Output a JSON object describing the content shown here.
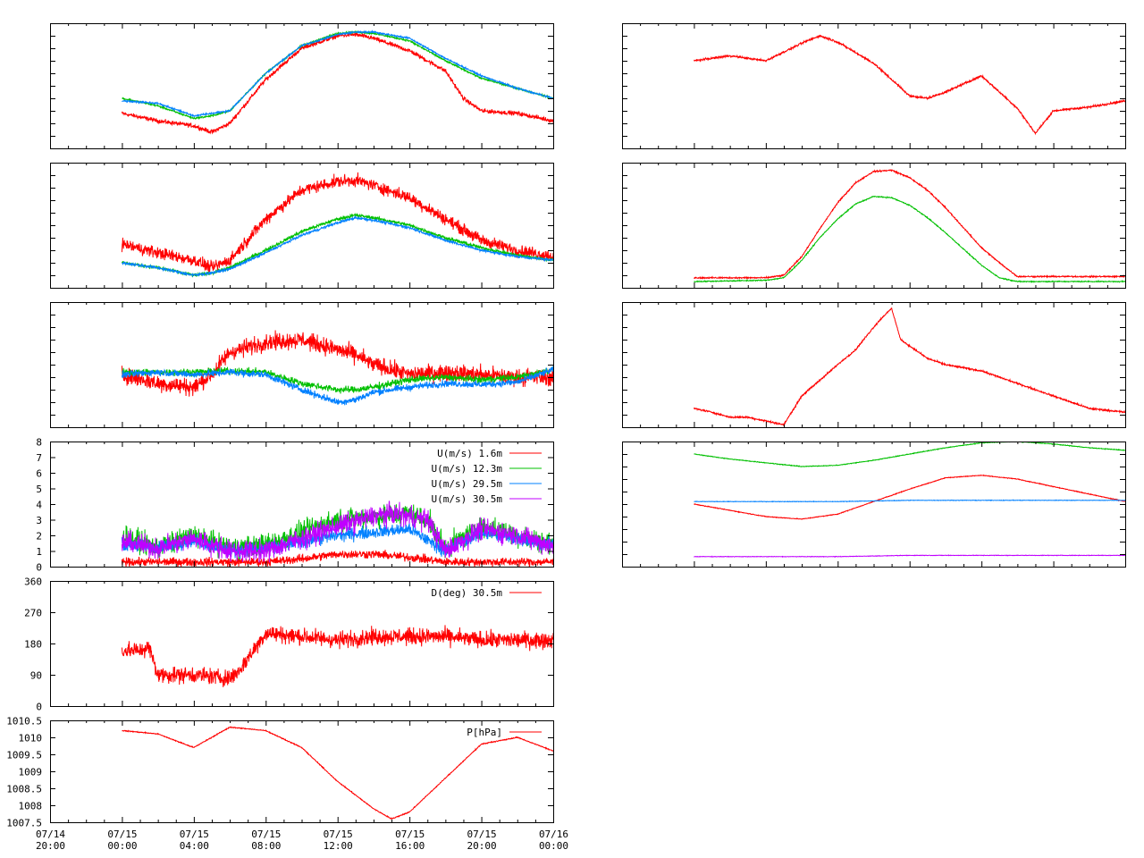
{
  "colors": {
    "red": "#ff0000",
    "green": "#00c000",
    "blue": "#0080ff",
    "purple": "#c000ff"
  },
  "x_tick_labels": [
    {
      "date": "07/14",
      "time": "20:00"
    },
    {
      "date": "07/15",
      "time": "00:00"
    },
    {
      "date": "07/15",
      "time": "04:00"
    },
    {
      "date": "07/15",
      "time": "08:00"
    },
    {
      "date": "07/15",
      "time": "12:00"
    },
    {
      "date": "07/15",
      "time": "16:00"
    },
    {
      "date": "07/15",
      "time": "20:00"
    },
    {
      "date": "07/16",
      "time": "00:00"
    }
  ],
  "chart_data": [
    {
      "type": "line",
      "panel": "left-1",
      "xlim": [
        "07/14 20:00",
        "07/16 00:00"
      ],
      "show_y_tick_labels": false,
      "series": [
        {
          "color": "red",
          "noise": 0.025,
          "x": [
            4,
            6,
            8,
            9,
            10,
            12,
            14,
            16,
            17,
            18,
            20,
            22,
            23,
            24,
            26,
            28
          ],
          "values": [
            0.28,
            0.22,
            0.18,
            0.13,
            0.2,
            0.55,
            0.8,
            0.9,
            0.91,
            0.88,
            0.78,
            0.62,
            0.4,
            0.3,
            0.28,
            0.22
          ]
        },
        {
          "color": "green",
          "noise": 0.01,
          "x": [
            4,
            6,
            8,
            9,
            10,
            12,
            14,
            16,
            17,
            18,
            20,
            22,
            24,
            26,
            28
          ],
          "values": [
            0.4,
            0.34,
            0.24,
            0.26,
            0.3,
            0.6,
            0.82,
            0.92,
            0.93,
            0.92,
            0.86,
            0.7,
            0.56,
            0.48,
            0.4
          ]
        },
        {
          "color": "blue",
          "noise": 0.01,
          "x": [
            4,
            6,
            8,
            9,
            10,
            12,
            14,
            16,
            17,
            18,
            20,
            22,
            24,
            26,
            28
          ],
          "values": [
            0.38,
            0.36,
            0.26,
            0.28,
            0.3,
            0.6,
            0.82,
            0.91,
            0.93,
            0.93,
            0.88,
            0.72,
            0.58,
            0.48,
            0.4
          ]
        }
      ]
    },
    {
      "type": "line",
      "panel": "left-2",
      "xlim": [
        "07/14 20:00",
        "07/16 00:00"
      ],
      "show_y_tick_labels": false,
      "series": [
        {
          "color": "red",
          "noise": 0.07,
          "x": [
            4,
            6,
            8,
            9,
            10,
            12,
            14,
            16,
            17,
            18,
            20,
            22,
            24,
            26,
            28
          ],
          "values": [
            0.35,
            0.28,
            0.22,
            0.16,
            0.22,
            0.55,
            0.78,
            0.85,
            0.86,
            0.82,
            0.72,
            0.55,
            0.38,
            0.3,
            0.25
          ]
        },
        {
          "color": "green",
          "noise": 0.02,
          "x": [
            4,
            6,
            8,
            9,
            10,
            12,
            14,
            16,
            17,
            18,
            20,
            22,
            24,
            26,
            28
          ],
          "values": [
            0.2,
            0.16,
            0.1,
            0.12,
            0.16,
            0.3,
            0.45,
            0.55,
            0.58,
            0.56,
            0.5,
            0.4,
            0.32,
            0.26,
            0.22
          ]
        },
        {
          "color": "blue",
          "noise": 0.015,
          "x": [
            4,
            6,
            8,
            9,
            10,
            12,
            14,
            16,
            17,
            18,
            20,
            22,
            24,
            26,
            28
          ],
          "values": [
            0.2,
            0.16,
            0.1,
            0.12,
            0.15,
            0.28,
            0.42,
            0.52,
            0.56,
            0.54,
            0.48,
            0.38,
            0.3,
            0.25,
            0.22
          ]
        }
      ]
    },
    {
      "type": "line",
      "panel": "left-3",
      "xlim": [
        "07/14 20:00",
        "07/16 00:00"
      ],
      "show_y_tick_labels": false,
      "series": [
        {
          "color": "red",
          "noise": 0.1,
          "x": [
            4,
            6,
            8,
            9,
            10,
            12,
            14,
            16,
            17,
            18,
            20,
            22,
            24,
            26,
            28
          ],
          "values": [
            0.42,
            0.35,
            0.32,
            0.42,
            0.6,
            0.68,
            0.7,
            0.62,
            0.58,
            0.5,
            0.42,
            0.44,
            0.42,
            0.4,
            0.4
          ]
        },
        {
          "color": "green",
          "noise": 0.04,
          "x": [
            4,
            6,
            8,
            10,
            12,
            14,
            16,
            17,
            18,
            20,
            22,
            24,
            26,
            28
          ],
          "values": [
            0.44,
            0.44,
            0.44,
            0.45,
            0.44,
            0.35,
            0.3,
            0.3,
            0.32,
            0.38,
            0.4,
            0.38,
            0.4,
            0.46
          ]
        },
        {
          "color": "blue",
          "noise": 0.04,
          "x": [
            4,
            6,
            8,
            10,
            12,
            14,
            16,
            17,
            18,
            20,
            22,
            24,
            26,
            28
          ],
          "values": [
            0.42,
            0.44,
            0.42,
            0.44,
            0.42,
            0.3,
            0.2,
            0.22,
            0.28,
            0.32,
            0.35,
            0.34,
            0.36,
            0.46
          ]
        }
      ]
    },
    {
      "type": "line",
      "panel": "left-4",
      "xlim": [
        "07/14 20:00",
        "07/16 00:00"
      ],
      "ylim": [
        0,
        8
      ],
      "yticks": [
        "0",
        "1",
        "2",
        "3",
        "4",
        "5",
        "6",
        "7",
        "8"
      ],
      "legend_position": "top-right",
      "series": [
        {
          "name": "U(m/s)  1.6m",
          "color": "red",
          "noise": 0.4,
          "x": [
            4,
            8,
            12,
            14,
            16,
            18,
            20,
            22,
            24,
            28
          ],
          "values": [
            0.3,
            0.3,
            0.3,
            0.5,
            0.8,
            0.8,
            0.6,
            0.3,
            0.3,
            0.3
          ]
        },
        {
          "name": "U(m/s) 12.3m",
          "color": "green",
          "noise": 1.0,
          "x": [
            4,
            6,
            8,
            10,
            12,
            14,
            16,
            18,
            20,
            21,
            22,
            24,
            26,
            28
          ],
          "values": [
            2.0,
            1.2,
            2.0,
            1.2,
            1.4,
            2.2,
            3.0,
            3.2,
            3.4,
            3.0,
            1.2,
            2.6,
            2.0,
            1.4
          ]
        },
        {
          "name": "U(m/s) 29.5m",
          "color": "blue",
          "noise": 0.6,
          "x": [
            4,
            6,
            8,
            10,
            12,
            14,
            16,
            18,
            20,
            22,
            24,
            28
          ],
          "values": [
            1.5,
            1.2,
            1.7,
            1.0,
            1.1,
            1.6,
            2.0,
            2.2,
            2.4,
            1.0,
            2.2,
            1.4
          ]
        },
        {
          "name": "U(m/s) 30.5m",
          "color": "purple",
          "noise": 1.0,
          "x": [
            4,
            6,
            8,
            10,
            12,
            14,
            16,
            18,
            19,
            20,
            21,
            22,
            24,
            26,
            28
          ],
          "values": [
            1.6,
            1.2,
            1.8,
            1.0,
            1.0,
            1.8,
            2.6,
            3.2,
            3.4,
            3.2,
            3.0,
            1.0,
            2.4,
            2.0,
            1.3
          ]
        }
      ]
    },
    {
      "type": "line",
      "panel": "left-5",
      "xlim": [
        "07/14 20:00",
        "07/16 00:00"
      ],
      "ylim": [
        0,
        360
      ],
      "yticks": [
        "0",
        "90",
        "180",
        "270",
        "360"
      ],
      "legend_position": "top-right",
      "series": [
        {
          "name": "D(deg)  30.5m",
          "color": "red",
          "noise": 35,
          "x": [
            4,
            5,
            5.5,
            6,
            8,
            10,
            10.5,
            12,
            14,
            16,
            18,
            20,
            22,
            24,
            26,
            28
          ],
          "values": [
            160,
            160,
            170,
            90,
            90,
            80,
            100,
            210,
            200,
            190,
            200,
            200,
            200,
            190,
            190,
            190
          ]
        }
      ]
    },
    {
      "type": "line",
      "panel": "left-6",
      "xlim": [
        "07/14 20:00",
        "07/16 00:00"
      ],
      "ylim": [
        1007.5,
        1010.5
      ],
      "yticks": [
        "1007.5",
        "1008",
        "1008.5",
        "1009",
        "1009.5",
        "1010",
        "1010.5"
      ],
      "legend_position": "top-right",
      "series": [
        {
          "name": "P[hPa]",
          "color": "red",
          "noise": 0.02,
          "x": [
            4,
            6,
            8,
            10,
            12,
            14,
            16,
            18,
            19,
            20,
            22,
            24,
            26,
            28
          ],
          "values": [
            1010.2,
            1010.1,
            1009.7,
            1010.3,
            1010.2,
            1009.7,
            1008.7,
            1007.9,
            1007.6,
            1007.8,
            1008.8,
            1009.8,
            1010.0,
            1009.6
          ]
        }
      ]
    },
    {
      "type": "line",
      "panel": "right-1",
      "xlim": [
        "07/14 20:00",
        "07/16 00:00"
      ],
      "show_y_tick_labels": false,
      "series": [
        {
          "color": "red",
          "noise": 0.012,
          "x": [
            4,
            6,
            8,
            10,
            11,
            12,
            14,
            15,
            16,
            17,
            18,
            20,
            22,
            23,
            24,
            26,
            28
          ],
          "values": [
            0.7,
            0.74,
            0.7,
            0.84,
            0.9,
            0.85,
            0.68,
            0.55,
            0.42,
            0.4,
            0.45,
            0.58,
            0.32,
            0.12,
            0.3,
            0.33,
            0.38
          ]
        }
      ]
    },
    {
      "type": "line",
      "panel": "right-2",
      "xlim": [
        "07/14 20:00",
        "07/16 00:00"
      ],
      "show_y_tick_labels": false,
      "series": [
        {
          "color": "red",
          "noise": 0.008,
          "x": [
            4,
            8,
            9,
            10,
            11,
            12,
            13,
            14,
            15,
            16,
            17,
            18,
            19,
            20,
            21,
            22,
            23,
            24,
            28
          ],
          "values": [
            0.08,
            0.08,
            0.1,
            0.25,
            0.47,
            0.68,
            0.84,
            0.93,
            0.94,
            0.88,
            0.78,
            0.64,
            0.48,
            0.32,
            0.2,
            0.09,
            0.09,
            0.09,
            0.09
          ]
        },
        {
          "color": "green",
          "noise": 0.006,
          "x": [
            4,
            8,
            9,
            10,
            11,
            12,
            13,
            14,
            15,
            16,
            17,
            18,
            19,
            20,
            21,
            22,
            23,
            24,
            28
          ],
          "values": [
            0.05,
            0.06,
            0.08,
            0.22,
            0.4,
            0.55,
            0.67,
            0.73,
            0.72,
            0.66,
            0.56,
            0.44,
            0.31,
            0.18,
            0.08,
            0.05,
            0.05,
            0.05,
            0.05
          ]
        }
      ]
    },
    {
      "type": "line",
      "panel": "right-3",
      "xlim": [
        "07/14 20:00",
        "07/16 00:00"
      ],
      "show_y_tick_labels": false,
      "series": [
        {
          "color": "red",
          "noise": 0.01,
          "x": [
            4,
            5,
            6,
            7,
            8,
            9,
            10,
            12,
            13,
            14,
            14.5,
            15,
            15.5,
            16,
            17,
            18,
            20,
            22,
            24,
            26,
            28
          ],
          "values": [
            0.15,
            0.12,
            0.08,
            0.08,
            0.05,
            0.02,
            0.25,
            0.5,
            0.62,
            0.8,
            0.88,
            0.95,
            0.7,
            0.65,
            0.55,
            0.5,
            0.45,
            0.35,
            0.25,
            0.15,
            0.12
          ]
        }
      ]
    },
    {
      "type": "line",
      "panel": "right-4",
      "xlim": [
        "07/14 20:00",
        "07/16 00:00"
      ],
      "show_y_tick_labels": false,
      "series": [
        {
          "color": "green",
          "noise": 0.004,
          "x": [
            4,
            6,
            8,
            10,
            12,
            14,
            16,
            18,
            20,
            22,
            24,
            26,
            28
          ],
          "values": [
            0.9,
            0.86,
            0.83,
            0.8,
            0.81,
            0.85,
            0.9,
            0.95,
            0.99,
            1.0,
            0.98,
            0.95,
            0.93
          ]
        },
        {
          "color": "red",
          "noise": 0.004,
          "x": [
            4,
            6,
            8,
            10,
            12,
            14,
            16,
            18,
            20,
            22,
            24,
            26,
            28
          ],
          "values": [
            0.5,
            0.45,
            0.4,
            0.38,
            0.42,
            0.52,
            0.62,
            0.71,
            0.73,
            0.7,
            0.64,
            0.58,
            0.52
          ]
        },
        {
          "color": "blue",
          "noise": 0.003,
          "x": [
            4,
            8,
            12,
            16,
            20,
            24,
            28
          ],
          "values": [
            0.52,
            0.52,
            0.52,
            0.53,
            0.53,
            0.53,
            0.53
          ]
        },
        {
          "color": "purple",
          "noise": 0.003,
          "x": [
            4,
            8,
            12,
            16,
            20,
            24,
            28
          ],
          "values": [
            0.08,
            0.08,
            0.08,
            0.09,
            0.09,
            0.09,
            0.09
          ]
        }
      ]
    }
  ]
}
